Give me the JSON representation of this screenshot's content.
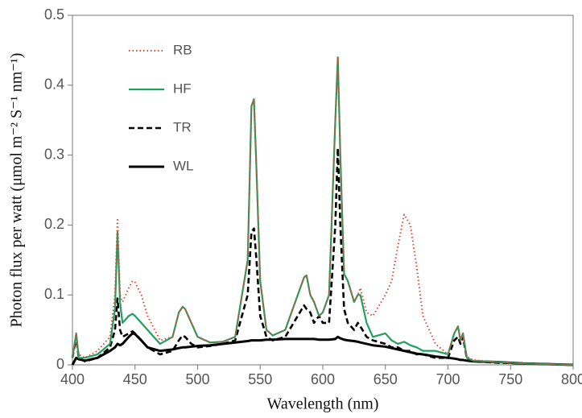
{
  "chart_data": {
    "type": "line",
    "x_label": "Wavelength (nm)",
    "y_label": "Photon flux per watt (μmol m⁻² S⁻¹ nm⁻¹)",
    "x": [
      400,
      403,
      405,
      410,
      420,
      430,
      434,
      436,
      438,
      440,
      445,
      448,
      450,
      455,
      460,
      470,
      480,
      485,
      488,
      490,
      495,
      500,
      510,
      520,
      530,
      540,
      543,
      545,
      547,
      550,
      555,
      560,
      570,
      580,
      585,
      587,
      590,
      593,
      597,
      600,
      605,
      610,
      612,
      614,
      617,
      620,
      625,
      628,
      630,
      635,
      640,
      650,
      655,
      660,
      665,
      670,
      675,
      680,
      690,
      700,
      705,
      708,
      710,
      712,
      715,
      720,
      740,
      760,
      780,
      800
    ],
    "series": [
      {
        "name": "RB",
        "color": "#e8432c",
        "dash": "dotted",
        "values": [
          0.01,
          0.045,
          0.015,
          0.01,
          0.02,
          0.04,
          0.1,
          0.21,
          0.1,
          0.09,
          0.11,
          0.12,
          0.118,
          0.1,
          0.07,
          0.035,
          0.04,
          0.075,
          0.083,
          0.08,
          0.06,
          0.04,
          0.032,
          0.033,
          0.04,
          0.15,
          0.37,
          0.38,
          0.28,
          0.12,
          0.05,
          0.042,
          0.05,
          0.1,
          0.125,
          0.128,
          0.1,
          0.09,
          0.07,
          0.075,
          0.1,
          0.35,
          0.44,
          0.3,
          0.13,
          0.12,
          0.09,
          0.1,
          0.11,
          0.075,
          0.07,
          0.1,
          0.12,
          0.17,
          0.215,
          0.2,
          0.14,
          0.07,
          0.03,
          0.015,
          0.045,
          0.055,
          0.035,
          0.045,
          0.012,
          0.007,
          0.004,
          0.002,
          0.001,
          0
        ]
      },
      {
        "name": "HF",
        "color": "#1fa060",
        "dash": "solid",
        "values": [
          0.01,
          0.045,
          0.01,
          0.01,
          0.015,
          0.03,
          0.08,
          0.19,
          0.09,
          0.06,
          0.07,
          0.073,
          0.07,
          0.06,
          0.05,
          0.03,
          0.04,
          0.075,
          0.083,
          0.08,
          0.06,
          0.04,
          0.032,
          0.033,
          0.04,
          0.15,
          0.37,
          0.38,
          0.28,
          0.12,
          0.05,
          0.042,
          0.05,
          0.1,
          0.125,
          0.128,
          0.1,
          0.09,
          0.07,
          0.075,
          0.1,
          0.35,
          0.44,
          0.3,
          0.13,
          0.12,
          0.09,
          0.1,
          0.1,
          0.06,
          0.04,
          0.045,
          0.035,
          0.03,
          0.033,
          0.028,
          0.025,
          0.02,
          0.02,
          0.015,
          0.045,
          0.055,
          0.035,
          0.045,
          0.01,
          0.006,
          0.004,
          0.002,
          0.001,
          0
        ]
      },
      {
        "name": "TR",
        "color": "#000000",
        "dash": "dashed",
        "values": [
          0.01,
          0.04,
          0.01,
          0.005,
          0.01,
          0.025,
          0.05,
          0.095,
          0.05,
          0.04,
          0.045,
          0.048,
          0.045,
          0.035,
          0.025,
          0.015,
          0.02,
          0.035,
          0.042,
          0.04,
          0.03,
          0.025,
          0.027,
          0.03,
          0.035,
          0.1,
          0.19,
          0.195,
          0.15,
          0.07,
          0.04,
          0.035,
          0.04,
          0.07,
          0.085,
          0.08,
          0.075,
          0.06,
          0.07,
          0.06,
          0.06,
          0.2,
          0.31,
          0.2,
          0.08,
          0.06,
          0.05,
          0.06,
          0.055,
          0.04,
          0.035,
          0.03,
          0.025,
          0.025,
          0.02,
          0.02,
          0.015,
          0.015,
          0.01,
          0.01,
          0.035,
          0.04,
          0.03,
          0.04,
          0.01,
          0.005,
          0.003,
          0.002,
          0.001,
          0
        ]
      },
      {
        "name": "WL",
        "color": "#000000",
        "dash": "thick",
        "values": [
          0,
          0.01,
          0.008,
          0.006,
          0.01,
          0.02,
          0.025,
          0.03,
          0.028,
          0.03,
          0.04,
          0.045,
          0.044,
          0.035,
          0.025,
          0.02,
          0.022,
          0.024,
          0.025,
          0.025,
          0.026,
          0.027,
          0.028,
          0.03,
          0.032,
          0.034,
          0.035,
          0.035,
          0.035,
          0.035,
          0.036,
          0.036,
          0.037,
          0.037,
          0.037,
          0.037,
          0.037,
          0.037,
          0.036,
          0.036,
          0.036,
          0.037,
          0.04,
          0.038,
          0.036,
          0.035,
          0.034,
          0.033,
          0.032,
          0.03,
          0.028,
          0.026,
          0.024,
          0.022,
          0.02,
          0.018,
          0.016,
          0.015,
          0.012,
          0.01,
          0.009,
          0.008,
          0.007,
          0.007,
          0.006,
          0.005,
          0.004,
          0.002,
          0.001,
          0
        ]
      }
    ],
    "xlim": [
      400,
      800
    ],
    "xticks": [
      400,
      450,
      500,
      550,
      600,
      650,
      700,
      750,
      800
    ],
    "ylim": [
      0,
      0.5
    ],
    "yticks": [
      0,
      0.1,
      0.2,
      0.3,
      0.4,
      0.5
    ],
    "legend": "upper-left"
  }
}
